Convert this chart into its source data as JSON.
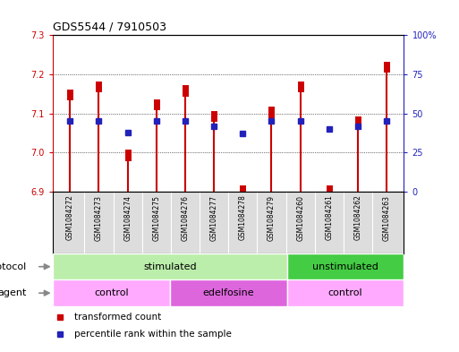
{
  "title": "GDS5544 / 7910503",
  "samples": [
    "GSM1084272",
    "GSM1084273",
    "GSM1084274",
    "GSM1084275",
    "GSM1084276",
    "GSM1084277",
    "GSM1084278",
    "GSM1084279",
    "GSM1084260",
    "GSM1084261",
    "GSM1084262",
    "GSM1084263"
  ],
  "bar_tops": [
    7.155,
    7.175,
    7.0,
    7.13,
    7.165,
    7.1,
    6.91,
    7.11,
    7.175,
    6.91,
    7.085,
    7.225
  ],
  "bar_base": 6.9,
  "blue_percentiles": [
    45,
    45,
    38,
    45,
    45,
    42,
    37,
    45,
    45,
    40,
    42,
    45
  ],
  "ylim_left": [
    6.9,
    7.3
  ],
  "ylim_right": [
    0,
    100
  ],
  "yticks_left": [
    6.9,
    7.0,
    7.1,
    7.2,
    7.3
  ],
  "yticks_right": [
    0,
    25,
    50,
    75,
    100
  ],
  "ytick_labels_right": [
    "0",
    "25",
    "50",
    "75",
    "100%"
  ],
  "bar_color": "#cc0000",
  "blue_color": "#2222bb",
  "protocol_labels": [
    {
      "text": "stimulated",
      "start": 0,
      "end": 7,
      "color": "#bbeeaa"
    },
    {
      "text": "unstimulated",
      "start": 8,
      "end": 11,
      "color": "#44cc44"
    }
  ],
  "agent_labels": [
    {
      "text": "control",
      "start": 0,
      "end": 3,
      "color": "#ffaaff"
    },
    {
      "text": "edelfosine",
      "start": 4,
      "end": 7,
      "color": "#dd66dd"
    },
    {
      "text": "control",
      "start": 8,
      "end": 11,
      "color": "#ffaaff"
    }
  ],
  "protocol_arrow_label": "protocol",
  "agent_arrow_label": "agent",
  "legend_items": [
    {
      "label": "transformed count",
      "color": "#cc0000"
    },
    {
      "label": "percentile rank within the sample",
      "color": "#2222bb"
    }
  ],
  "bg_color": "#ffffff",
  "left_tick_color": "#cc0000",
  "right_tick_color": "#2222bb",
  "thin_bar_lw": 1.5,
  "thick_bar_lw": 5,
  "tick_label_bg": "#dddddd"
}
